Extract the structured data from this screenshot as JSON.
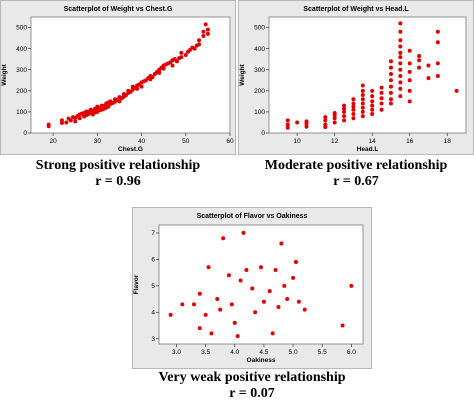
{
  "chart_data": [
    {
      "type": "scatter",
      "title": "Scatterplot of Weight vs Chest.G",
      "xlabel": "Chest.G",
      "ylabel": "Weight",
      "xlim": [
        15,
        60
      ],
      "ylim": [
        0,
        550
      ],
      "xticks": [
        20,
        30,
        40,
        50,
        60
      ],
      "yticks": [
        0,
        100,
        200,
        300,
        400,
        500
      ],
      "color": "#e00000",
      "caption_line1": "Strong positive relationship",
      "caption_line2": "r = 0.96",
      "points": [
        [
          19,
          32
        ],
        [
          19,
          40
        ],
        [
          22,
          48
        ],
        [
          22,
          60
        ],
        [
          23,
          50
        ],
        [
          23.5,
          68
        ],
        [
          24,
          60
        ],
        [
          24.5,
          75
        ],
        [
          25,
          55
        ],
        [
          25,
          72
        ],
        [
          25.5,
          80
        ],
        [
          26,
          70
        ],
        [
          26,
          88
        ],
        [
          26.5,
          92
        ],
        [
          27,
          78
        ],
        [
          27,
          95
        ],
        [
          27.5,
          85
        ],
        [
          27.5,
          102
        ],
        [
          28,
          90
        ],
        [
          28,
          100
        ],
        [
          28.5,
          95
        ],
        [
          28.5,
          110
        ],
        [
          29,
          88
        ],
        [
          29,
          105
        ],
        [
          29.5,
          115
        ],
        [
          29.5,
          98
        ],
        [
          30,
          100
        ],
        [
          30,
          112
        ],
        [
          30,
          125
        ],
        [
          30.5,
          108
        ],
        [
          30.5,
          118
        ],
        [
          31,
          110
        ],
        [
          31,
          120
        ],
        [
          31,
          130
        ],
        [
          31.5,
          115
        ],
        [
          31.5,
          128
        ],
        [
          32,
          120
        ],
        [
          32,
          132
        ],
        [
          32,
          140
        ],
        [
          32.5,
          125
        ],
        [
          32.5,
          145
        ],
        [
          33,
          138
        ],
        [
          33,
          150
        ],
        [
          33.5,
          142
        ],
        [
          34,
          148
        ],
        [
          34,
          160
        ],
        [
          34.5,
          155
        ],
        [
          35,
          150
        ],
        [
          35,
          170
        ],
        [
          35.5,
          165
        ],
        [
          36,
          172
        ],
        [
          36,
          185
        ],
        [
          36.5,
          180
        ],
        [
          37,
          190
        ],
        [
          37,
          200
        ],
        [
          37.5,
          195
        ],
        [
          38,
          205
        ],
        [
          38,
          220
        ],
        [
          38.5,
          215
        ],
        [
          39,
          225
        ],
        [
          39,
          210
        ],
        [
          39.5,
          230
        ],
        [
          40,
          220
        ],
        [
          40,
          240
        ],
        [
          40.5,
          245
        ],
        [
          41,
          250
        ],
        [
          41.5,
          260
        ],
        [
          42,
          255
        ],
        [
          42,
          270
        ],
        [
          42.5,
          265
        ],
        [
          43,
          280
        ],
        [
          43.5,
          290
        ],
        [
          44,
          285
        ],
        [
          44,
          300
        ],
        [
          44.5,
          310
        ],
        [
          45,
          305
        ],
        [
          45,
          320
        ],
        [
          45.5,
          325
        ],
        [
          46,
          330
        ],
        [
          46.5,
          335
        ],
        [
          47,
          320
        ],
        [
          47,
          345
        ],
        [
          47.5,
          350
        ],
        [
          48,
          340
        ],
        [
          48.5,
          355
        ],
        [
          49,
          360
        ],
        [
          49,
          380
        ],
        [
          50,
          370
        ],
        [
          50.5,
          385
        ],
        [
          51,
          395
        ],
        [
          51.5,
          405
        ],
        [
          52,
          400
        ],
        [
          52.5,
          415
        ],
        [
          53,
          420
        ],
        [
          53,
          440
        ],
        [
          54,
          460
        ],
        [
          54,
          480
        ],
        [
          55,
          470
        ],
        [
          55,
          490
        ],
        [
          54.5,
          515
        ]
      ]
    },
    {
      "type": "scatter",
      "title": "Scatterplot of Weight vs Head.L",
      "xlabel": "Head.L",
      "ylabel": "Weight",
      "xlim": [
        8.5,
        19
      ],
      "ylim": [
        0,
        550
      ],
      "xticks": [
        10,
        12,
        14,
        16,
        18
      ],
      "yticks": [
        0,
        100,
        200,
        300,
        400,
        500
      ],
      "color": "#e00000",
      "caption_line1": "Moderate positive relationship",
      "caption_line2": "r = 0.67",
      "points": [
        [
          9.5,
          25
        ],
        [
          9.5,
          40
        ],
        [
          9.5,
          60
        ],
        [
          10,
          50
        ],
        [
          10.5,
          30
        ],
        [
          10.5,
          45
        ],
        [
          10.5,
          55
        ],
        [
          11.5,
          28
        ],
        [
          11.5,
          40
        ],
        [
          11.5,
          60
        ],
        [
          11.5,
          75
        ],
        [
          12,
          50
        ],
        [
          12,
          70
        ],
        [
          12,
          85
        ],
        [
          12,
          95
        ],
        [
          12.5,
          60
        ],
        [
          12.5,
          80
        ],
        [
          12.5,
          100
        ],
        [
          12.5,
          115
        ],
        [
          12.5,
          130
        ],
        [
          13,
          70
        ],
        [
          13,
          90
        ],
        [
          13,
          110
        ],
        [
          13,
          125
        ],
        [
          13,
          140
        ],
        [
          13,
          160
        ],
        [
          13.5,
          80
        ],
        [
          13.5,
          100
        ],
        [
          13.5,
          120
        ],
        [
          13.5,
          140
        ],
        [
          13.5,
          160
        ],
        [
          13.5,
          180
        ],
        [
          13.5,
          200
        ],
        [
          13.5,
          225
        ],
        [
          14,
          90
        ],
        [
          14,
          110
        ],
        [
          14,
          130
        ],
        [
          14,
          150
        ],
        [
          14,
          175
        ],
        [
          14,
          200
        ],
        [
          14.5,
          110
        ],
        [
          14.5,
          140
        ],
        [
          14.5,
          165
        ],
        [
          14.5,
          190
        ],
        [
          14.5,
          215
        ],
        [
          15,
          140
        ],
        [
          15,
          160
        ],
        [
          15,
          190
        ],
        [
          15,
          220
        ],
        [
          15,
          250
        ],
        [
          15,
          280
        ],
        [
          15,
          310
        ],
        [
          15,
          340
        ],
        [
          15.5,
          175
        ],
        [
          15.5,
          210
        ],
        [
          15.5,
          240
        ],
        [
          15.5,
          270
        ],
        [
          15.5,
          300
        ],
        [
          15.5,
          330
        ],
        [
          15.5,
          360
        ],
        [
          15.5,
          380
        ],
        [
          15.5,
          410
        ],
        [
          15.5,
          440
        ],
        [
          15.5,
          480
        ],
        [
          15.5,
          520
        ],
        [
          16,
          150
        ],
        [
          16,
          200
        ],
        [
          16,
          250
        ],
        [
          16,
          290
        ],
        [
          16,
          330
        ],
        [
          16,
          390
        ],
        [
          16.5,
          310
        ],
        [
          16.5,
          345
        ],
        [
          16.5,
          365
        ],
        [
          17,
          260
        ],
        [
          17,
          320
        ],
        [
          17.5,
          270
        ],
        [
          17.5,
          330
        ],
        [
          17.5,
          430
        ],
        [
          17.5,
          480
        ],
        [
          18.5,
          200
        ]
      ]
    },
    {
      "type": "scatter",
      "title": "Scatterplot of Flavor vs Oakiness",
      "xlabel": "Oakiness",
      "ylabel": "Flavor",
      "xlim": [
        2.7,
        6.2
      ],
      "ylim": [
        2.8,
        7.3
      ],
      "xticks": [
        3.0,
        3.5,
        4.0,
        4.5,
        5.0,
        5.5,
        6.0
      ],
      "xticklabels": [
        "3.0",
        "3.5",
        "4.0",
        "4.5",
        "5.0",
        "5.5",
        "6.0"
      ],
      "yticks": [
        3,
        4,
        5,
        6,
        7
      ],
      "color": "#e00000",
      "caption_line1": "Very weak positive relationship",
      "caption_line2": "r = 0.07",
      "points": [
        [
          2.9,
          3.9
        ],
        [
          3.1,
          4.3
        ],
        [
          3.3,
          4.3
        ],
        [
          3.4,
          3.4
        ],
        [
          3.4,
          4.7
        ],
        [
          3.5,
          3.9
        ],
        [
          3.55,
          5.7
        ],
        [
          3.6,
          3.2
        ],
        [
          3.7,
          4.5
        ],
        [
          3.75,
          4.1
        ],
        [
          3.8,
          6.8
        ],
        [
          3.9,
          5.4
        ],
        [
          3.95,
          4.3
        ],
        [
          4.0,
          3.6
        ],
        [
          4.05,
          3.1
        ],
        [
          4.1,
          5.2
        ],
        [
          4.15,
          7.0
        ],
        [
          4.2,
          5.6
        ],
        [
          4.3,
          4.9
        ],
        [
          4.35,
          4.0
        ],
        [
          4.45,
          5.7
        ],
        [
          4.5,
          4.4
        ],
        [
          4.6,
          4.8
        ],
        [
          4.65,
          3.2
        ],
        [
          4.7,
          5.6
        ],
        [
          4.75,
          4.2
        ],
        [
          4.8,
          6.6
        ],
        [
          4.85,
          5.0
        ],
        [
          4.9,
          4.5
        ],
        [
          5.0,
          5.3
        ],
        [
          5.05,
          5.9
        ],
        [
          5.1,
          4.4
        ],
        [
          5.2,
          4.1
        ],
        [
          5.85,
          3.5
        ],
        [
          6.0,
          5.0
        ]
      ]
    }
  ]
}
